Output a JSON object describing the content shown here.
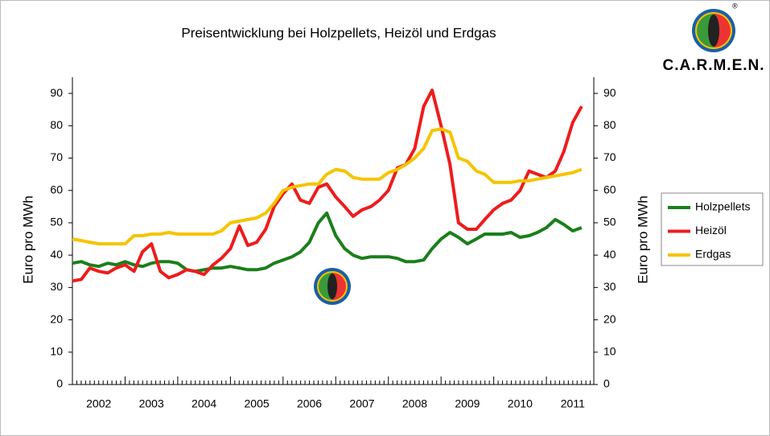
{
  "chart_data": {
    "type": "line",
    "title": "Preisentwicklung bei Holzpellets, Heizöl und Erdgas",
    "ylabel": "Euro pro MWh",
    "y2label": "Euro pro MWh",
    "logo_text": "C.A.R.M.E.N.",
    "logo_mark": "®",
    "x": [
      2002,
      2002.17,
      2002.33,
      2002.5,
      2002.67,
      2002.83,
      2003,
      2003.17,
      2003.33,
      2003.5,
      2003.67,
      2003.83,
      2004,
      2004.17,
      2004.33,
      2004.5,
      2004.67,
      2004.83,
      2005,
      2005.17,
      2005.33,
      2005.5,
      2005.67,
      2005.83,
      2006,
      2006.17,
      2006.33,
      2006.5,
      2006.67,
      2006.83,
      2007,
      2007.17,
      2007.33,
      2007.5,
      2007.67,
      2007.83,
      2008,
      2008.17,
      2008.33,
      2008.5,
      2008.67,
      2008.83,
      2009,
      2009.17,
      2009.33,
      2009.5,
      2009.67,
      2009.83,
      2010,
      2010.17,
      2010.33,
      2010.5,
      2010.67,
      2010.83,
      2011,
      2011.17,
      2011.33,
      2011.5,
      2011.67
    ],
    "xlim": [
      2002,
      2011.9
    ],
    "xticks": [
      {
        "value": 2002.5,
        "label": "2002"
      },
      {
        "value": 2003.5,
        "label": "2003"
      },
      {
        "value": 2004.5,
        "label": "2004"
      },
      {
        "value": 2005.5,
        "label": "2005"
      },
      {
        "value": 2006.5,
        "label": "2006"
      },
      {
        "value": 2007.5,
        "label": "2007"
      },
      {
        "value": 2008.5,
        "label": "2008"
      },
      {
        "value": 2009.5,
        "label": "2009"
      },
      {
        "value": 2010.5,
        "label": "2010"
      },
      {
        "value": 2011.5,
        "label": "2011"
      }
    ],
    "ylim": [
      0,
      95
    ],
    "yticks": [
      0,
      10,
      20,
      30,
      40,
      50,
      60,
      70,
      80,
      90
    ],
    "y2lim": [
      0,
      95
    ],
    "y2ticks": [
      0,
      10,
      20,
      30,
      40,
      50,
      60,
      70,
      80,
      90
    ],
    "grid": false,
    "legend": "right",
    "series": [
      {
        "name": "Holzpellets",
        "color": "#1a7f1a",
        "values": [
          37.5,
          38,
          37,
          36.5,
          37.5,
          37,
          38,
          37,
          36.5,
          37.5,
          38,
          38,
          37.5,
          35.5,
          35,
          35.5,
          36,
          36,
          36.5,
          36,
          35.5,
          35.5,
          36,
          37.5,
          38.5,
          39.5,
          41,
          44,
          50,
          53,
          46,
          42,
          40,
          39,
          39.5,
          39.5,
          39.5,
          39,
          38,
          38,
          38.5,
          42,
          45,
          47,
          45.5,
          43.5,
          45,
          46.5,
          46.5,
          46.5,
          47,
          45.5,
          46,
          47,
          48.5,
          51,
          49.5,
          47.5,
          48.5
        ]
      },
      {
        "name": "Heizöl",
        "color": "#ee1c1c",
        "values": [
          32,
          32.5,
          36,
          35,
          34.5,
          36,
          37,
          35,
          41,
          43.5,
          35,
          33,
          34,
          35.5,
          35,
          34,
          37,
          39,
          42,
          49,
          43,
          44,
          48,
          55,
          59,
          62,
          57,
          56,
          61,
          62,
          58,
          55,
          52,
          54,
          55,
          57,
          60,
          67,
          68,
          73,
          86,
          91,
          80,
          68,
          50,
          48,
          48,
          51,
          54,
          56,
          57,
          60,
          66,
          65,
          64,
          66,
          72,
          81,
          86
        ]
      },
      {
        "name": "Erdgas",
        "color": "#f5c400",
        "values": [
          45,
          44.5,
          44,
          43.5,
          43.5,
          43.5,
          43.5,
          46,
          46,
          46.5,
          46.5,
          47,
          46.5,
          46.5,
          46.5,
          46.5,
          46.5,
          47.5,
          50,
          50.5,
          51,
          51.5,
          53,
          56,
          60,
          61,
          61.5,
          62,
          62,
          65,
          66.5,
          66,
          64,
          63.5,
          63.5,
          63.5,
          65.5,
          66.5,
          68,
          70,
          73,
          78.5,
          79,
          78,
          70,
          69,
          66,
          65,
          62.5,
          62.5,
          62.5,
          63,
          63,
          63.5,
          64,
          64.5,
          65,
          65.5,
          66.5
        ]
      }
    ]
  }
}
